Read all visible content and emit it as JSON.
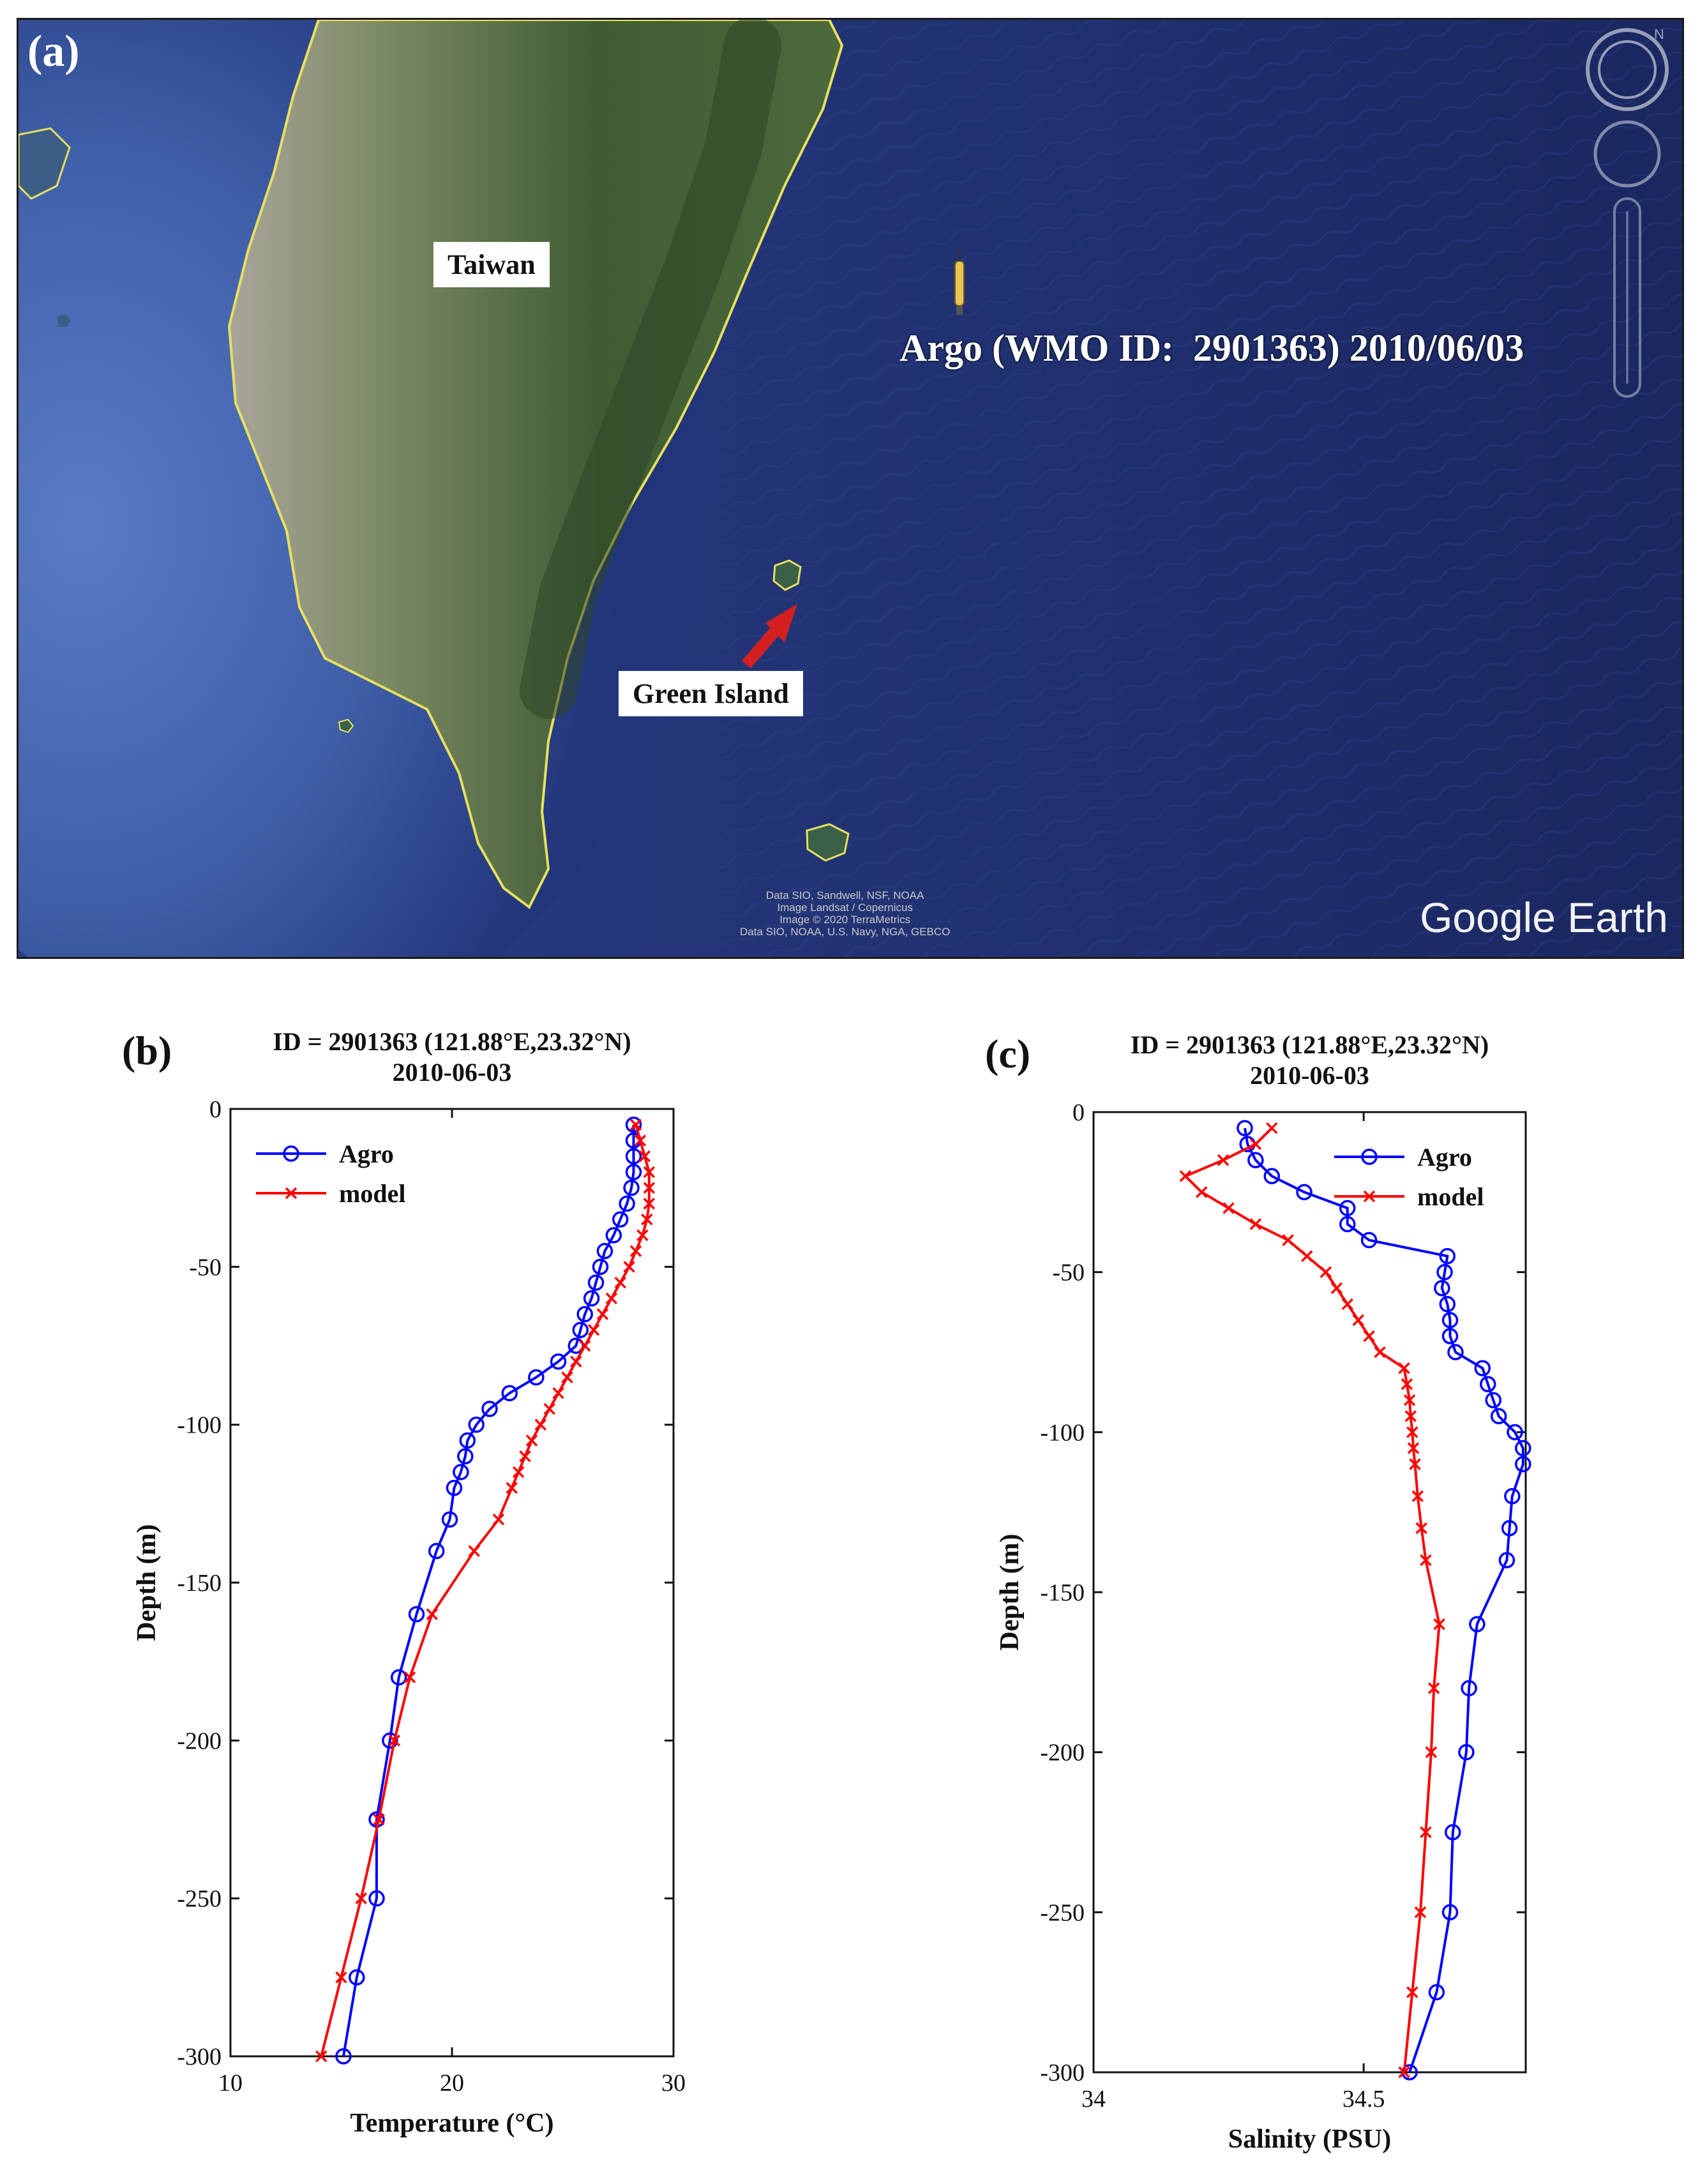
{
  "panel_a": {
    "letter": "(a)",
    "labels": {
      "taiwan": "Taiwan",
      "green_island": "Green Island",
      "argo": "Argo (WMO ID:  2901363) 2010/06/03"
    },
    "attribution": [
      "Data SIO, Sandwell, NSF, NOAA",
      "Image Landsat / Copernicus",
      "Image © 2020 TerraMetrics",
      "Data SIO, NOAA, U.S. Navy, NGA, GEBCO"
    ],
    "brand": "Google Earth",
    "icons": [
      "compass-icon",
      "look-control-icon",
      "zoom-slider-icon",
      "argo-float-icon",
      "red-arrow-icon"
    ],
    "colors": {
      "ocean_deep": "#1b2b63",
      "ocean_shelf": "#4a6bb5",
      "land": "#4e6b3e",
      "coast": "#e8e060",
      "arrow": "#d42020"
    }
  },
  "chart_data": [
    {
      "type": "line",
      "panel": "(b)",
      "title": "ID = 2901363 (121.88°E,23.32°N)",
      "subtitle": "2010-06-03",
      "xlabel": "Temperature (°C)",
      "ylabel": "Depth (m)",
      "xlim": [
        10,
        30
      ],
      "ylim": [
        -300,
        0
      ],
      "xticks": [
        10,
        20,
        30
      ],
      "yticks": [
        0,
        -50,
        -100,
        -150,
        -200,
        -250,
        -300
      ],
      "legend": "top-left",
      "grid": false,
      "series": [
        {
          "name": "Agro",
          "color": "#0000ff",
          "marker": "o",
          "points": [
            [
              28.2,
              -5
            ],
            [
              28.2,
              -10
            ],
            [
              28.2,
              -15
            ],
            [
              28.2,
              -20
            ],
            [
              28.1,
              -25
            ],
            [
              27.9,
              -30
            ],
            [
              27.6,
              -35
            ],
            [
              27.3,
              -40
            ],
            [
              26.9,
              -45
            ],
            [
              26.7,
              -50
            ],
            [
              26.5,
              -55
            ],
            [
              26.3,
              -60
            ],
            [
              26.0,
              -65
            ],
            [
              25.8,
              -70
            ],
            [
              25.6,
              -75
            ],
            [
              24.8,
              -80
            ],
            [
              23.8,
              -85
            ],
            [
              22.6,
              -90
            ],
            [
              21.7,
              -95
            ],
            [
              21.1,
              -100
            ],
            [
              20.7,
              -105
            ],
            [
              20.6,
              -110
            ],
            [
              20.4,
              -115
            ],
            [
              20.1,
              -120
            ],
            [
              19.9,
              -130
            ],
            [
              19.3,
              -140
            ],
            [
              18.4,
              -160
            ],
            [
              17.6,
              -180
            ],
            [
              17.2,
              -200
            ],
            [
              16.6,
              -225
            ],
            [
              16.6,
              -250
            ],
            [
              15.7,
              -275
            ],
            [
              15.1,
              -300
            ]
          ]
        },
        {
          "name": "model",
          "color": "#ff0000",
          "marker": "x",
          "points": [
            [
              28.3,
              -5
            ],
            [
              28.5,
              -10
            ],
            [
              28.7,
              -15
            ],
            [
              28.9,
              -20
            ],
            [
              28.9,
              -25
            ],
            [
              28.9,
              -30
            ],
            [
              28.8,
              -35
            ],
            [
              28.6,
              -40
            ],
            [
              28.3,
              -45
            ],
            [
              28.0,
              -50
            ],
            [
              27.6,
              -55
            ],
            [
              27.2,
              -60
            ],
            [
              26.8,
              -65
            ],
            [
              26.4,
              -70
            ],
            [
              26.0,
              -75
            ],
            [
              25.6,
              -80
            ],
            [
              25.2,
              -85
            ],
            [
              24.8,
              -90
            ],
            [
              24.4,
              -95
            ],
            [
              24.0,
              -100
            ],
            [
              23.6,
              -105
            ],
            [
              23.3,
              -110
            ],
            [
              23.0,
              -115
            ],
            [
              22.7,
              -120
            ],
            [
              22.1,
              -130
            ],
            [
              21.0,
              -140
            ],
            [
              19.1,
              -160
            ],
            [
              18.1,
              -180
            ],
            [
              17.4,
              -200
            ],
            [
              16.7,
              -225
            ],
            [
              15.9,
              -250
            ],
            [
              15.0,
              -275
            ],
            [
              14.1,
              -300
            ]
          ]
        }
      ]
    },
    {
      "type": "line",
      "panel": "(c)",
      "title": "ID = 2901363 (121.88°E,23.32°N)",
      "subtitle": "2010-06-03",
      "xlabel": "Salinity (PSU)",
      "ylabel": "Depth (m)",
      "xlim": [
        34,
        34.8
      ],
      "ylim": [
        -300,
        0
      ],
      "xticks": [
        34,
        34.5
      ],
      "yticks": [
        0,
        -50,
        -100,
        -150,
        -200,
        -250,
        -300
      ],
      "legend": "top-right",
      "grid": false,
      "series": [
        {
          "name": "Agro",
          "color": "#0000ff",
          "marker": "o",
          "points": [
            [
              34.28,
              -5
            ],
            [
              34.285,
              -10
            ],
            [
              34.3,
              -15
            ],
            [
              34.33,
              -20
            ],
            [
              34.39,
              -25
            ],
            [
              34.47,
              -30
            ],
            [
              34.47,
              -35
            ],
            [
              34.51,
              -40
            ],
            [
              34.655,
              -45
            ],
            [
              34.65,
              -50
            ],
            [
              34.645,
              -55
            ],
            [
              34.655,
              -60
            ],
            [
              34.66,
              -65
            ],
            [
              34.66,
              -70
            ],
            [
              34.67,
              -75
            ],
            [
              34.72,
              -80
            ],
            [
              34.73,
              -85
            ],
            [
              34.74,
              -90
            ],
            [
              34.75,
              -95
            ],
            [
              34.78,
              -100
            ],
            [
              34.795,
              -105
            ],
            [
              34.795,
              -110
            ],
            [
              34.775,
              -120
            ],
            [
              34.77,
              -130
            ],
            [
              34.765,
              -140
            ],
            [
              34.71,
              -160
            ],
            [
              34.695,
              -180
            ],
            [
              34.69,
              -200
            ],
            [
              34.665,
              -225
            ],
            [
              34.66,
              -250
            ],
            [
              34.635,
              -275
            ],
            [
              34.585,
              -300
            ]
          ]
        },
        {
          "name": "model",
          "color": "#ff0000",
          "marker": "x",
          "points": [
            [
              34.33,
              -5
            ],
            [
              34.3,
              -10
            ],
            [
              34.24,
              -15
            ],
            [
              34.17,
              -20
            ],
            [
              34.2,
              -25
            ],
            [
              34.25,
              -30
            ],
            [
              34.3,
              -35
            ],
            [
              34.36,
              -40
            ],
            [
              34.395,
              -45
            ],
            [
              34.43,
              -50
            ],
            [
              34.45,
              -55
            ],
            [
              34.47,
              -60
            ],
            [
              34.49,
              -65
            ],
            [
              34.51,
              -70
            ],
            [
              34.53,
              -75
            ],
            [
              34.575,
              -80
            ],
            [
              34.58,
              -85
            ],
            [
              34.585,
              -90
            ],
            [
              34.587,
              -95
            ],
            [
              34.59,
              -100
            ],
            [
              34.592,
              -105
            ],
            [
              34.595,
              -110
            ],
            [
              34.6,
              -120
            ],
            [
              34.607,
              -130
            ],
            [
              34.615,
              -140
            ],
            [
              34.64,
              -160
            ],
            [
              34.63,
              -180
            ],
            [
              34.625,
              -200
            ],
            [
              34.615,
              -225
            ],
            [
              34.605,
              -250
            ],
            [
              34.59,
              -275
            ],
            [
              34.575,
              -300
            ]
          ]
        }
      ]
    }
  ]
}
